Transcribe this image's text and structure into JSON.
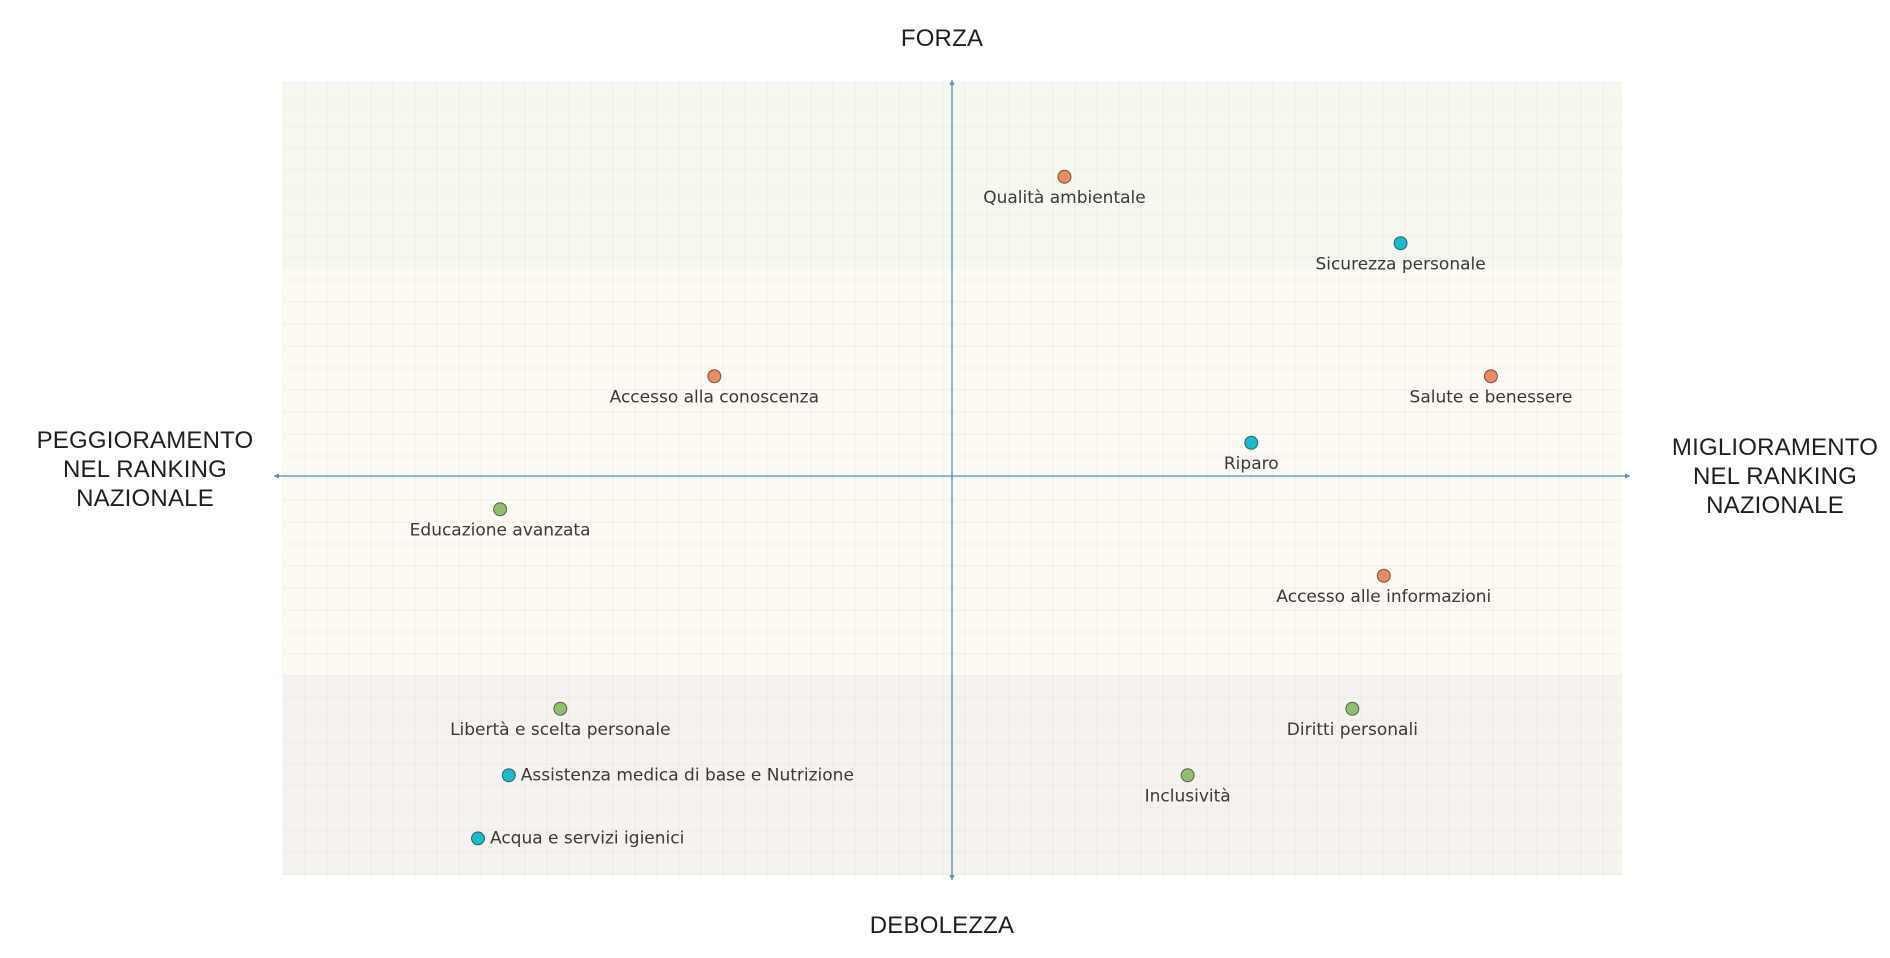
{
  "chart_data": {
    "type": "scatter",
    "title": "",
    "axis_titles": {
      "top": "FORZA",
      "bottom": "DEBOLEZZA",
      "left": "PEGGIORAMENTO\nNEL RANKING\nNAZIONALE",
      "right": "MIGLIORAMENTO\nNEL RANKING\nNAZIONALE"
    },
    "xlim": [
      -10,
      10
    ],
    "ylim": [
      -6,
      6
    ],
    "grid": true,
    "bands": [
      {
        "name": "forza",
        "from": 3.1,
        "to": 6,
        "color": "#f4f8ef"
      },
      {
        "name": "neutral",
        "from": -3,
        "to": 3.1,
        "color": "#fdf9f3"
      },
      {
        "name": "debolezza",
        "from": -6,
        "to": -3,
        "color": "#f6f2ee"
      }
    ],
    "colors": {
      "orange": "#ee8a5c",
      "teal": "#16bcd0",
      "green": "#92bf6c",
      "axis": "#4b93b7"
    },
    "points": [
      {
        "label": "Qualità ambientale",
        "x": 1.68,
        "y": 4.5,
        "color": "orange",
        "label_pos": "below"
      },
      {
        "label": "Sicurezza personale",
        "x": 6.7,
        "y": 3.5,
        "color": "teal",
        "label_pos": "below"
      },
      {
        "label": "Accesso alla conoscenza",
        "x": -3.55,
        "y": 1.5,
        "color": "orange",
        "label_pos": "below"
      },
      {
        "label": "Salute e benessere",
        "x": 8.05,
        "y": 1.5,
        "color": "orange",
        "label_pos": "below"
      },
      {
        "label": "Riparo",
        "x": 4.47,
        "y": 0.5,
        "color": "teal",
        "label_pos": "below"
      },
      {
        "label": "Educazione avanzata",
        "x": -6.75,
        "y": -0.5,
        "color": "green",
        "label_pos": "below"
      },
      {
        "label": "Accesso alle informazioni",
        "x": 6.45,
        "y": -1.5,
        "color": "orange",
        "label_pos": "below"
      },
      {
        "label": "Libertà e scelta personale",
        "x": -5.85,
        "y": -3.5,
        "color": "green",
        "label_pos": "below"
      },
      {
        "label": "Diritti personali",
        "x": 5.98,
        "y": -3.5,
        "color": "green",
        "label_pos": "below"
      },
      {
        "label": "Assistenza medica di base e Nutrizione",
        "x": -6.62,
        "y": -4.5,
        "color": "teal",
        "label_pos": "right"
      },
      {
        "label": "Inclusività",
        "x": 3.52,
        "y": -4.5,
        "color": "green",
        "label_pos": "below"
      },
      {
        "label": "Acqua e servizi igienici",
        "x": -7.08,
        "y": -5.45,
        "color": "teal",
        "label_pos": "right"
      }
    ]
  }
}
